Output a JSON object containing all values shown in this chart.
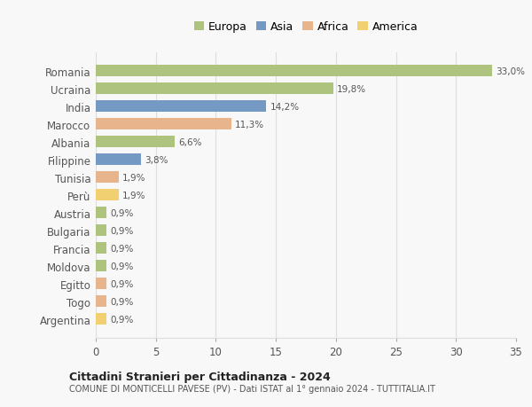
{
  "countries": [
    "Romania",
    "Ucraina",
    "India",
    "Marocco",
    "Albania",
    "Filippine",
    "Tunisia",
    "Perù",
    "Austria",
    "Bulgaria",
    "Francia",
    "Moldova",
    "Egitto",
    "Togo",
    "Argentina"
  ],
  "values": [
    33.0,
    19.8,
    14.2,
    11.3,
    6.6,
    3.8,
    1.9,
    1.9,
    0.9,
    0.9,
    0.9,
    0.9,
    0.9,
    0.9,
    0.9
  ],
  "labels": [
    "33,0%",
    "19,8%",
    "14,2%",
    "11,3%",
    "6,6%",
    "3,8%",
    "1,9%",
    "1,9%",
    "0,9%",
    "0,9%",
    "0,9%",
    "0,9%",
    "0,9%",
    "0,9%",
    "0,9%"
  ],
  "colors": [
    "#aec47e",
    "#aec47e",
    "#7499c2",
    "#e8b48c",
    "#aec47e",
    "#7499c2",
    "#e8b48c",
    "#f0d070",
    "#aec47e",
    "#aec47e",
    "#aec47e",
    "#aec47e",
    "#e8b48c",
    "#e8b48c",
    "#f0d070"
  ],
  "legend_labels": [
    "Europa",
    "Asia",
    "Africa",
    "America"
  ],
  "legend_colors": [
    "#aec47e",
    "#7499c2",
    "#e8b48c",
    "#f0d070"
  ],
  "title1": "Cittadini Stranieri per Cittadinanza - 2024",
  "title2": "COMUNE DI MONTICELLI PAVESE (PV) - Dati ISTAT al 1° gennaio 2024 - TUTTITALIA.IT",
  "xlim": [
    0,
    35
  ],
  "xticks": [
    0,
    5,
    10,
    15,
    20,
    25,
    30,
    35
  ],
  "bg_color": "#f8f8f8",
  "grid_color": "#dddddd"
}
